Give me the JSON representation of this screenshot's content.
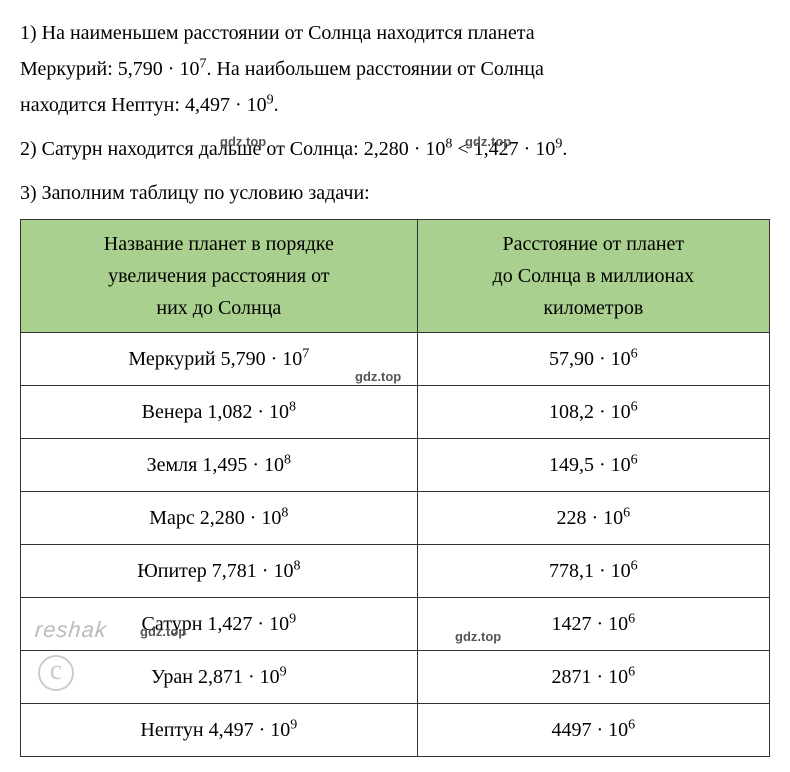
{
  "para1_line1": "1) На наименьшем расстоянии от Солнца находится планета",
  "para1_line2a": "Меркурий: 5,790 · 10",
  "para1_line2b": ". На наибольшем расстоянии от Солнца",
  "para1_line3a": "находится Нептун: 4,497 · 10",
  "para1_line3b": ".",
  "exp7": "7",
  "exp9": "9",
  "exp8": "8",
  "exp6": "6",
  "para2a": "2) Сатурн находится дальше от Солнца: 2,280 · 10",
  "para2b": " < 1,427 · 10",
  "para2c": ".",
  "para3": "3) Заполним таблицу по условию задачи:",
  "header1_l1": "Название планет в порядке",
  "header1_l2": "увеличения расстояния от",
  "header1_l3": "них до Солнца",
  "header2_l1": "Расстояние от планет",
  "header2_l2": "до Солнца в миллионах",
  "header2_l3": "километров",
  "rows": [
    {
      "name": "Меркурий 5,790 · 10",
      "nexp": "7",
      "dist": "57,90 · 10"
    },
    {
      "name": "Венера 1,082 · 10",
      "nexp": "8",
      "dist": "108,2 · 10"
    },
    {
      "name": "Земля 1,495 · 10",
      "nexp": "8",
      "dist": "149,5 · 10"
    },
    {
      "name": "Марс 2,280 · 10",
      "nexp": "8",
      "dist": "228 · 10"
    },
    {
      "name": "Юпитер 7,781 · 10",
      "nexp": "8",
      "dist": "778,1 · 10"
    },
    {
      "name": "Сатурн 1,427 · 10",
      "nexp": "9",
      "dist": "1427 · 10"
    },
    {
      "name": "Уран 2,871 · 10",
      "nexp": "9",
      "dist": "2871 · 10"
    },
    {
      "name": "Нептун 4,497 · 10",
      "nexp": "9",
      "dist": "4497 · 10"
    }
  ],
  "wm": "gdz.top",
  "reshak": "reshak",
  "copyright": "c",
  "colors": {
    "header_bg": "#a9d08e",
    "text": "#000000",
    "border": "#333333",
    "watermark": "#555555"
  }
}
